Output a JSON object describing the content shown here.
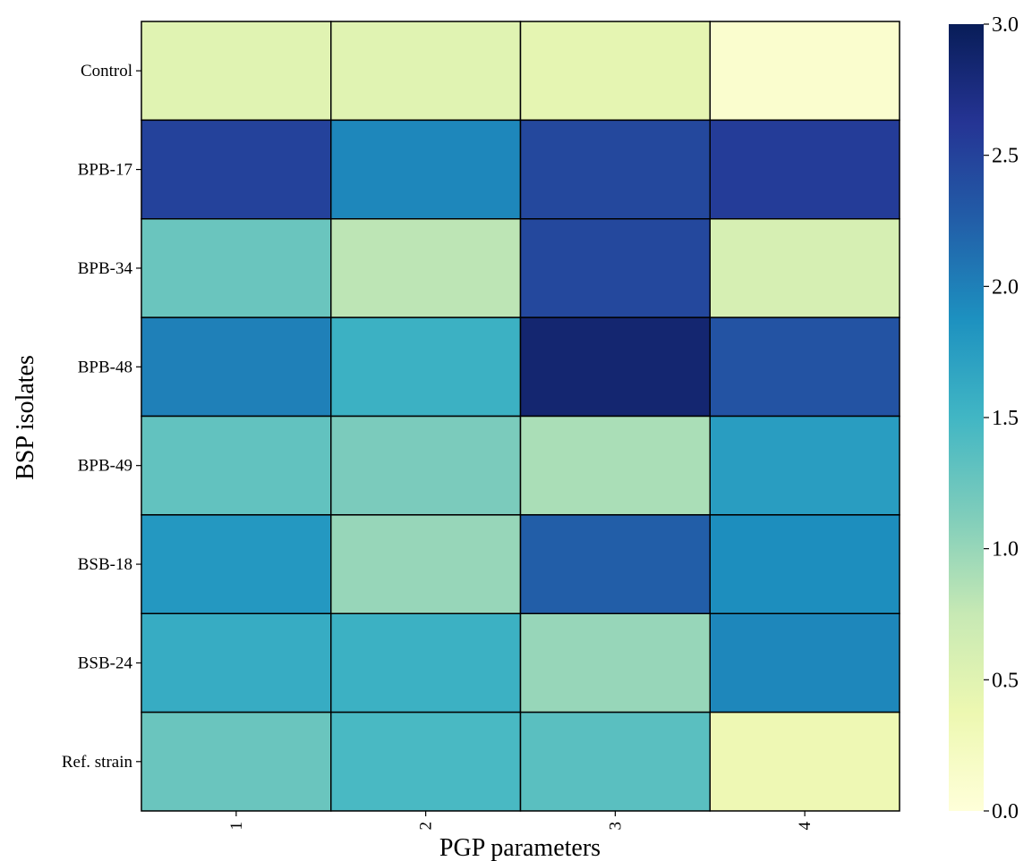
{
  "chart_data": {
    "type": "heatmap",
    "title": "",
    "xlabel": "PGP parameters",
    "ylabel": "BSP isolates",
    "x_categories": [
      "1",
      "2",
      "3",
      "4"
    ],
    "y_categories": [
      "Control",
      "BPB-17",
      "BPB-34",
      "BPB-48",
      "BPB-49",
      "BSB-18",
      "BSB-24",
      "Ref. strain"
    ],
    "values": [
      [
        0.5,
        0.5,
        0.45,
        0.1
      ],
      [
        2.5,
        1.95,
        2.45,
        2.55
      ],
      [
        1.25,
        0.8,
        2.45,
        0.6
      ],
      [
        2.0,
        1.55,
        2.85,
        2.35
      ],
      [
        1.3,
        1.15,
        0.9,
        1.75
      ],
      [
        1.8,
        1.0,
        2.25,
        1.9
      ],
      [
        1.6,
        1.55,
        1.0,
        1.95
      ],
      [
        1.25,
        1.45,
        1.35,
        0.35
      ]
    ],
    "colorbar": {
      "min": 0.0,
      "max": 3.0,
      "ticks": [
        "0.0",
        "0.5",
        "1.0",
        "1.5",
        "2.0",
        "2.5",
        "3.0"
      ],
      "colormap": "YlGnBu"
    },
    "grid": false,
    "legend": "colorbar-right"
  }
}
